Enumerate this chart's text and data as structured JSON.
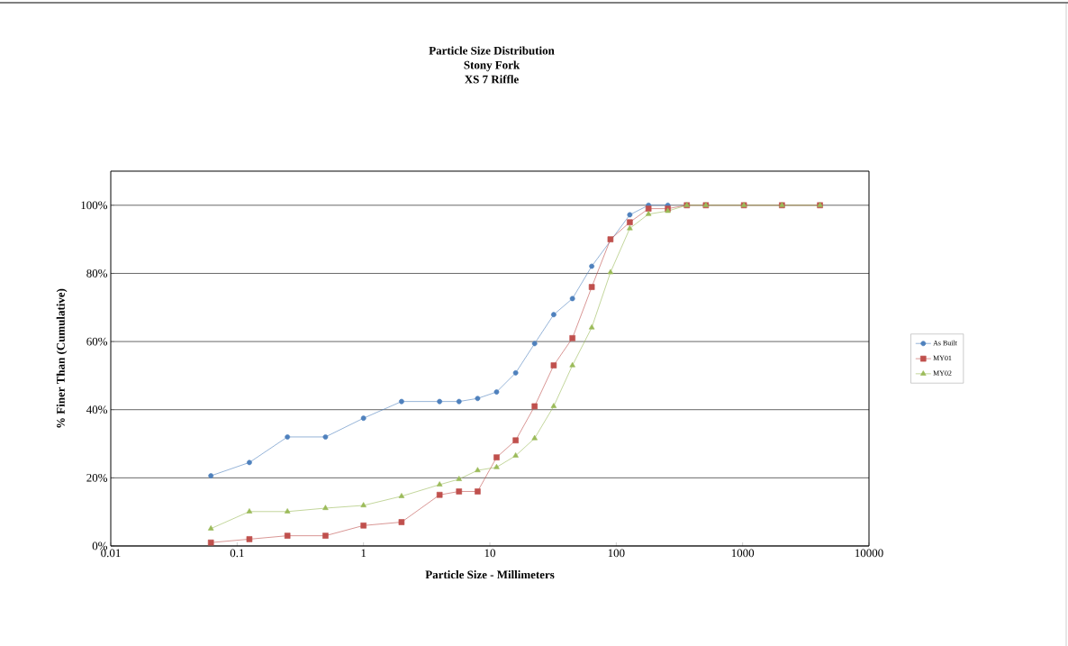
{
  "chart_data": {
    "type": "line",
    "title": "Particle Size Distribution\nStony Fork\nXS 7 Riffle",
    "xlabel": "Particle Size - Millimeters",
    "ylabel": "% Finer Than (Cumulative)",
    "x": [
      0.062,
      0.125,
      0.25,
      0.5,
      1,
      2,
      4,
      5.7,
      8,
      11.3,
      16,
      22.6,
      32,
      45,
      64,
      90,
      128,
      180,
      256,
      362,
      512,
      1024,
      2048,
      4096
    ],
    "series": [
      {
        "name": "As Built",
        "color": "#4f81bd",
        "marker": "circle",
        "values": [
          20.6,
          24.5,
          32,
          32,
          37.5,
          42.4,
          42.4,
          42.4,
          43.3,
          45.2,
          50.8,
          59.4,
          67.9,
          72.6,
          82.1,
          null,
          97.2,
          100,
          100,
          null,
          null,
          null,
          null,
          null
        ]
      },
      {
        "name": "MY01",
        "color": "#c0504d",
        "marker": "square",
        "values": [
          1,
          2,
          3,
          3,
          6,
          7,
          15,
          16,
          16,
          26,
          31,
          41,
          53,
          61,
          76,
          90,
          95,
          99,
          99,
          100,
          100,
          100,
          100,
          100
        ]
      },
      {
        "name": "MY02",
        "color": "#9bbb59",
        "marker": "triangle",
        "values": [
          5.1,
          10.1,
          10.1,
          11.1,
          11.9,
          14.6,
          18,
          19.6,
          22.2,
          23.1,
          26.5,
          31.6,
          41,
          53,
          64.1,
          80.3,
          93.2,
          97.4,
          98.3,
          100,
          100,
          100,
          100,
          100
        ]
      }
    ],
    "log": "x",
    "xlim": [
      0.01,
      10000
    ],
    "xticks": [
      0.01,
      0.1,
      1,
      10,
      100,
      1000,
      10000
    ],
    "ylim": [
      0,
      110
    ],
    "yticks": [
      {
        "value": 0,
        "label": "0%"
      },
      {
        "value": 20,
        "label": "20%"
      },
      {
        "value": 40,
        "label": "40%"
      },
      {
        "value": 60,
        "label": "60%"
      },
      {
        "value": 80,
        "label": "80%"
      },
      {
        "value": 100,
        "label": "100%"
      }
    ],
    "grid": "y",
    "legend": "right",
    "line_style": "solid"
  }
}
